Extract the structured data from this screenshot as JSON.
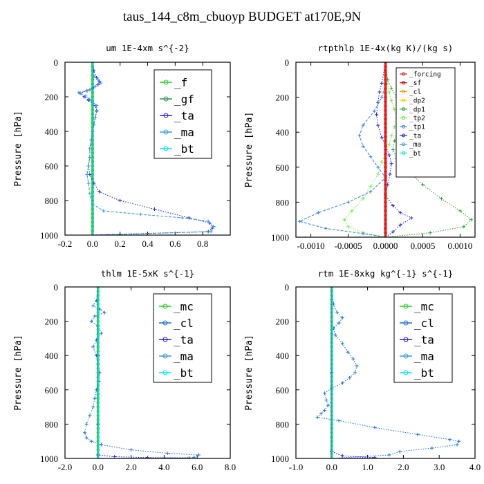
{
  "figure": {
    "title": "taus_144_c8m_cbuoyp  BUDGET at170E,9N"
  },
  "colors": {
    "_f": "#22cc22",
    "_gf": "#2e8b57",
    "_ta": "#2222dd",
    "_ma": "#3a9ad9",
    "_bt": "#00e5ee",
    "_mc": "#22cc22",
    "_cl": "#1e6fd9",
    "_forcing": "#e41a1c",
    "_sf": "#c00000",
    "_cl_r": "#ff9900",
    "_dp2": "#f5d000",
    "_dp1": "#2ca02c",
    "_tp2": "#66ee44",
    "_tp1": "#3a8ad9"
  },
  "chart_data": [
    {
      "type": "line",
      "title": "um  1E-4xm s^{-2}",
      "ylabel": "Pressure [hPa]",
      "xlim": [
        -0.2,
        1.0
      ],
      "ylim": [
        0,
        1000
      ],
      "xticks": [
        "-0.2",
        "0.0",
        "0.2",
        "0.4",
        "0.6",
        "0.8"
      ],
      "xtick_values": [
        -0.2,
        0.0,
        0.2,
        0.4,
        0.6,
        0.8
      ],
      "yticks": [
        "0",
        "200",
        "400",
        "600",
        "800",
        "1000"
      ],
      "ytick_values": [
        0,
        200,
        400,
        600,
        800,
        1000
      ],
      "legend": [
        "_f",
        "_gf",
        "_ta",
        "_ma",
        "_bt"
      ],
      "legend_size": "big",
      "series": [
        {
          "name": "_f",
          "color_key": "_f",
          "style": "thick",
          "x": [
            0,
            0
          ],
          "y": [
            0,
            1000
          ]
        },
        {
          "name": "_gf",
          "color_key": "_gf",
          "style": "thin",
          "x": [
            0.005,
            0.005
          ],
          "y": [
            0,
            1000
          ]
        },
        {
          "name": "_ta",
          "color_key": "_ta",
          "style": "dotted",
          "x": [
            0,
            0.01,
            0.03,
            0.05,
            0.04,
            0.0,
            -0.04,
            -0.09,
            -0.06,
            -0.03,
            0.02,
            0.03,
            0.02,
            0.01,
            0.0,
            -0.01,
            -0.02,
            -0.02,
            -0.03,
            -0.02,
            0.01,
            0.05,
            0.2,
            0.45,
            0.7,
            0.85,
            0.87,
            0.84,
            0.0
          ],
          "y": [
            0,
            50,
            90,
            110,
            130,
            150,
            165,
            180,
            200,
            220,
            250,
            280,
            320,
            360,
            400,
            450,
            500,
            550,
            600,
            650,
            700,
            750,
            800,
            850,
            900,
            930,
            960,
            980,
            1000
          ]
        },
        {
          "name": "_ma",
          "color_key": "_ma",
          "style": "dashed",
          "x": [
            0,
            0.0,
            0.01,
            0.04,
            0.06,
            0.02,
            -0.02,
            -0.1,
            -0.05,
            -0.02,
            0.03,
            0.03,
            0.02,
            0.01,
            0.0,
            -0.01,
            -0.02,
            -0.02,
            -0.03,
            -0.04,
            -0.03,
            -0.02,
            0.0,
            0.08,
            0.35,
            0.65,
            0.84,
            0.88,
            0.86,
            0.0
          ],
          "y": [
            0,
            40,
            80,
            100,
            120,
            140,
            160,
            175,
            195,
            215,
            250,
            285,
            320,
            360,
            400,
            450,
            500,
            550,
            600,
            650,
            700,
            760,
            820,
            860,
            880,
            900,
            920,
            950,
            980,
            1000
          ]
        },
        {
          "name": "_bt",
          "color_key": "_bt",
          "style": "plain",
          "x": [
            0.002,
            0.002
          ],
          "y": [
            0,
            1000
          ]
        }
      ]
    },
    {
      "type": "line",
      "title": "rtpthlp  1E-4x(kg K)/(kg s)",
      "ylabel": "Pressure [hPa]",
      "xlim": [
        -0.0012,
        0.0012
      ],
      "ylim": [
        0,
        1000
      ],
      "xticks": [
        "-0.0010",
        "-0.0005",
        "0.0000",
        "0.0005",
        "0.0010"
      ],
      "xtick_values": [
        -0.001,
        -0.0005,
        0.0,
        0.0005,
        0.001
      ],
      "yticks": [
        "0",
        "200",
        "400",
        "600",
        "800",
        "1000"
      ],
      "ytick_values": [
        0,
        200,
        400,
        600,
        800,
        1000
      ],
      "legend": [
        "_forcing",
        "_sf",
        "_cl",
        "_dp2",
        "_dp1",
        "_tp2",
        "_tp1",
        "_ta",
        "_ma",
        "_bt"
      ],
      "legend_color_keys": [
        "_forcing",
        "_sf",
        "_cl_r",
        "_dp2",
        "_dp1",
        "_tp2",
        "_tp1",
        "_ta",
        "_ma",
        "_bt"
      ],
      "legend_size": "small",
      "series": [
        {
          "name": "_dp1",
          "color_key": "_dp1",
          "style": "dotted",
          "x": [
            0,
            3e-05,
            8e-05,
            0.00015,
            0.00022,
            0.00028,
            0.00025,
            0.00018,
            0.00012,
            0.0001,
            0.00015,
            0.0003,
            0.0005,
            0.00075,
            0.001,
            0.00115,
            0.00105,
            0.0006,
            0.0
          ],
          "y": [
            0,
            100,
            150,
            200,
            250,
            300,
            350,
            400,
            450,
            500,
            550,
            620,
            700,
            780,
            850,
            900,
            940,
            975,
            1000
          ]
        },
        {
          "name": "_tp2",
          "color_key": "_tp2",
          "style": "dotted",
          "x": [
            0,
            2e-05,
            5e-05,
            8e-05,
            0.00012,
            0.00015,
            0.00012,
            8e-05,
            5e-05,
            0.0,
            -5e-05,
            -0.0001,
            -0.0002,
            -0.0003,
            -0.00045,
            -0.00055,
            -0.0005,
            -0.0003,
            0.0
          ],
          "y": [
            0,
            120,
            170,
            220,
            270,
            320,
            370,
            420,
            470,
            520,
            570,
            640,
            710,
            780,
            850,
            900,
            940,
            975,
            1000
          ]
        },
        {
          "name": "_ta",
          "color_key": "_ta",
          "style": "dotted",
          "x": [
            0,
            -5e-05,
            -8e-05,
            -0.0001,
            -0.00012,
            -0.0001,
            -5e-05,
            0.0,
            5e-05,
            8e-05,
            6e-05,
            3e-05,
            0.0,
            0.0001,
            0.0002,
            0.00035,
            0.0002,
            0.0001,
            0.0
          ],
          "y": [
            0,
            120,
            170,
            230,
            300,
            360,
            430,
            480,
            530,
            580,
            640,
            700,
            760,
            820,
            860,
            890,
            930,
            970,
            1000
          ]
        },
        {
          "name": "_tp1",
          "color_key": "_tp1",
          "style": "dashed",
          "x": [
            0,
            0.0,
            -5e-05,
            -0.00015,
            -0.0003,
            -0.00035,
            -0.0003,
            -0.0002,
            -0.0001,
            0.0,
            -0.0002,
            -0.0005,
            -0.0009,
            -0.00115,
            -0.0008,
            -0.0003,
            0.0
          ],
          "y": [
            0,
            130,
            200,
            280,
            360,
            420,
            480,
            540,
            600,
            660,
            740,
            800,
            860,
            910,
            950,
            980,
            1000
          ]
        },
        {
          "name": "_ma",
          "color_key": "_ma",
          "style": "plain",
          "x": [
            0,
            0,
            0
          ],
          "y": [
            0,
            500,
            1000
          ]
        },
        {
          "name": "_bt",
          "color_key": "_bt",
          "style": "plain",
          "x": [
            1e-05,
            1e-05
          ],
          "y": [
            0,
            1000
          ]
        },
        {
          "name": "_cl",
          "color_key": "_cl_r",
          "style": "plain",
          "x": [
            1e-05,
            1e-05
          ],
          "y": [
            0,
            1000
          ]
        },
        {
          "name": "_dp2",
          "color_key": "_dp2",
          "style": "plain",
          "x": [
            -1e-05,
            -1e-05
          ],
          "y": [
            0,
            1000
          ]
        },
        {
          "name": "_sf",
          "color_key": "_sf",
          "style": "thick",
          "x": [
            0.0,
            0.0
          ],
          "y": [
            0,
            1000
          ]
        },
        {
          "name": "_forcing",
          "color_key": "_forcing",
          "style": "thick",
          "x": [
            0.0,
            0.0
          ],
          "y": [
            0,
            1000
          ]
        }
      ]
    },
    {
      "type": "line",
      "title": "thlm  1E-5xK s^{-1}",
      "ylabel": "Pressure [hPa]",
      "xlim": [
        -2.0,
        8.0
      ],
      "ylim": [
        0,
        1000
      ],
      "xticks": [
        "-2.0",
        "0.0",
        "2.0",
        "4.0",
        "6.0",
        "8.0"
      ],
      "xtick_values": [
        -2.0,
        0.0,
        2.0,
        4.0,
        6.0,
        8.0
      ],
      "yticks": [
        "0",
        "200",
        "400",
        "600",
        "800",
        "1000"
      ],
      "ytick_values": [
        0,
        200,
        400,
        600,
        800,
        1000
      ],
      "legend": [
        "_mc",
        "_cl",
        "_ta",
        "_ma",
        "_bt"
      ],
      "legend_size": "big",
      "series": [
        {
          "name": "_mc",
          "color_key": "_mc",
          "style": "thick",
          "x": [
            0,
            0
          ],
          "y": [
            0,
            1000
          ]
        },
        {
          "name": "_cl",
          "color_key": "_cl",
          "style": "dotted",
          "x": [
            0,
            -0.1,
            -0.3,
            0.1,
            0.4,
            -0.2,
            -0.4,
            0.0,
            0.2,
            -0.1,
            -0.3,
            -0.1,
            0.0,
            0.1,
            0.05,
            -0.1,
            -0.2,
            -0.3,
            -0.5,
            -0.7,
            -0.8,
            -0.7,
            -0.4,
            0.2,
            2.0,
            4.2,
            6.1,
            5.8,
            0.0
          ],
          "y": [
            0,
            80,
            110,
            130,
            150,
            170,
            200,
            230,
            270,
            310,
            350,
            400,
            450,
            500,
            550,
            600,
            650,
            700,
            750,
            800,
            850,
            880,
            900,
            920,
            950,
            970,
            980,
            995,
            1000
          ]
        },
        {
          "name": "_ta",
          "color_key": "_ta",
          "style": "dotted",
          "x": [
            0,
            0.0,
            0.0,
            0.0,
            1.0,
            3.0,
            5.5,
            0.0
          ],
          "y": [
            0,
            400,
            800,
            980,
            990,
            995,
            998,
            1000
          ]
        },
        {
          "name": "_ma",
          "color_key": "_ma",
          "style": "plain",
          "x": [
            0,
            0
          ],
          "y": [
            0,
            1000
          ]
        },
        {
          "name": "_bt",
          "color_key": "_bt",
          "style": "plain",
          "x": [
            0.02,
            0.02
          ],
          "y": [
            0,
            1000
          ]
        }
      ]
    },
    {
      "type": "line",
      "title": "rtm  1E-8xkg kg^{-1} s^{-1}",
      "ylabel": "Pressure [hPa]",
      "xlim": [
        -1.0,
        4.0
      ],
      "ylim": [
        0,
        1000
      ],
      "xticks": [
        "-1.0",
        "0.0",
        "1.0",
        "2.0",
        "3.0",
        "4.0"
      ],
      "xtick_values": [
        -1.0,
        0.0,
        1.0,
        2.0,
        3.0,
        4.0
      ],
      "yticks": [
        "0",
        "200",
        "400",
        "600",
        "800",
        "1000"
      ],
      "ytick_values": [
        0,
        200,
        400,
        600,
        800,
        1000
      ],
      "legend": [
        "_mc",
        "_cl",
        "_ta",
        "_ma",
        "_bt"
      ],
      "legend_size": "big",
      "series": [
        {
          "name": "_mc",
          "color_key": "_mc",
          "style": "thick",
          "x": [
            0,
            0
          ],
          "y": [
            0,
            1000
          ]
        },
        {
          "name": "_cl",
          "color_key": "_cl",
          "style": "dotted",
          "x": [
            0,
            0.05,
            0.15,
            0.3,
            0.2,
            0.05,
            0.1,
            0.3,
            0.45,
            0.6,
            0.7,
            0.65,
            0.5,
            0.3,
            0.0,
            -0.2,
            -0.15,
            -0.1,
            -0.2,
            -0.3,
            -0.4,
            0.2,
            1.2,
            2.4,
            3.3,
            3.55,
            3.5,
            2.8,
            1.9,
            1.6,
            0.0
          ],
          "y": [
            0,
            100,
            150,
            180,
            210,
            240,
            280,
            330,
            380,
            420,
            460,
            500,
            530,
            560,
            590,
            620,
            660,
            690,
            720,
            740,
            760,
            780,
            820,
            860,
            890,
            900,
            920,
            940,
            960,
            980,
            1000
          ]
        },
        {
          "name": "_ta",
          "color_key": "_ta",
          "style": "dotted",
          "x": [
            0,
            0.0,
            0.0,
            0.3,
            1.2,
            0.0
          ],
          "y": [
            0,
            500,
            960,
            985,
            995,
            1000
          ]
        },
        {
          "name": "_ma",
          "color_key": "_ma",
          "style": "plain",
          "x": [
            0,
            0
          ],
          "y": [
            0,
            1000
          ]
        },
        {
          "name": "_bt",
          "color_key": "_bt",
          "style": "plain",
          "x": [
            0.02,
            0.02
          ],
          "y": [
            0,
            1000
          ]
        }
      ]
    }
  ]
}
